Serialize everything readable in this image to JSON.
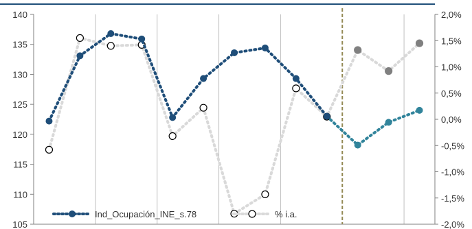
{
  "chart_data": {
    "type": "line",
    "x_count": 13,
    "forecast_start_index": 10,
    "forecast_divider_after_index": 9.5,
    "grid": {
      "vertical": true,
      "horizontal": false
    },
    "legend_position": "bottom-left",
    "y_left": {
      "min": 105,
      "max": 140,
      "ticks": [
        "140",
        "135",
        "130",
        "125",
        "120",
        "115",
        "110",
        "105"
      ],
      "tick_values": [
        140,
        135,
        130,
        125,
        120,
        115,
        110,
        105
      ]
    },
    "y_right": {
      "min": -2.0,
      "max": 2.0,
      "ticks": [
        "2,0%",
        "1,5%",
        "1,0%",
        "0,5%",
        "0,0%",
        "-0,5%",
        "-1,0%",
        "-1,5%",
        "-2,0%"
      ],
      "tick_values": [
        2.0,
        1.5,
        1.0,
        0.5,
        0.0,
        -0.5,
        -1.0,
        -1.5,
        -2.0
      ]
    },
    "series": [
      {
        "name": "Ind_Ocupación_INE_s.78",
        "axis": "left",
        "values": [
          122.2,
          133.1,
          136.8,
          135.9,
          122.8,
          129.3,
          133.6,
          134.4,
          129.3,
          123.0,
          118.2,
          122.0,
          124.0
        ],
        "color": "#1F4E79",
        "forecast_color": "#31849B"
      },
      {
        "name": "% i.a.",
        "axis": "right",
        "values": [
          -0.58,
          1.55,
          1.4,
          1.42,
          -0.32,
          0.22,
          -1.43,
          0.59,
          0.05,
          1.32,
          0.92,
          1.45
        ],
        "x_indices": [
          0,
          1,
          2,
          3,
          4,
          5,
          7,
          8,
          9,
          10,
          11,
          12
        ],
        "extra_point": {
          "x_index": 6,
          "value": -1.8
        },
        "color": "#D9D9D9",
        "forecast_marker_color": "#808080"
      }
    ]
  },
  "colors": {
    "axis_left": "#1F4E79",
    "grid": "#BFBFBF",
    "divider": "#948A54",
    "text": "#333333"
  }
}
